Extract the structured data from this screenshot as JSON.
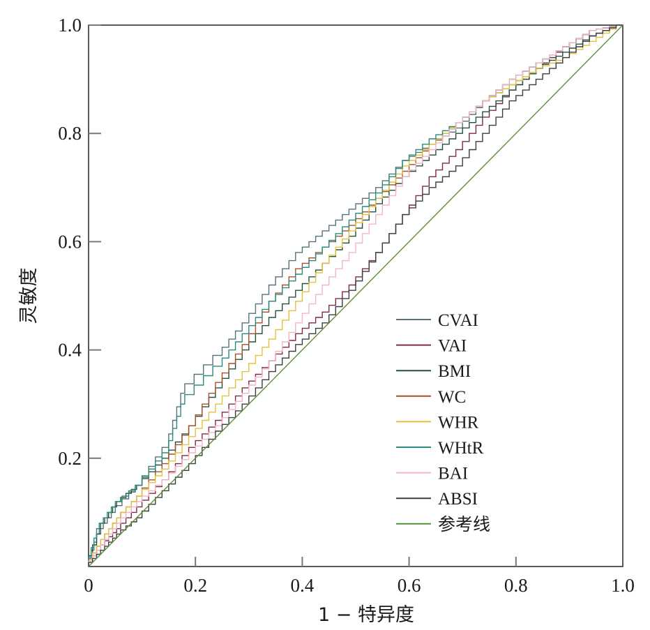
{
  "chart_data": {
    "type": "line",
    "xlabel": "1 − 特异度",
    "ylabel": "灵敏度",
    "xlim": [
      0,
      1
    ],
    "ylim": [
      0,
      1
    ],
    "x_ticks": [
      "0",
      "0.2",
      "0.4",
      "0.6",
      "0.8",
      "1.0"
    ],
    "y_ticks": [
      "0.2",
      "0.4",
      "0.6",
      "0.8",
      "1.0"
    ],
    "legend_position": "lower-right",
    "grid": false,
    "series": [
      {
        "name": "CVAI",
        "color": "#56727a",
        "x": [
          0,
          0.02,
          0.05,
          0.1,
          0.15,
          0.18,
          0.25,
          0.3,
          0.35,
          0.4,
          0.45,
          0.5,
          0.55,
          0.6,
          0.65,
          0.7,
          0.75,
          0.8,
          0.85,
          0.9,
          0.95,
          1.0
        ],
        "y": [
          0,
          0.06,
          0.1,
          0.15,
          0.22,
          0.32,
          0.39,
          0.45,
          0.52,
          0.58,
          0.62,
          0.66,
          0.7,
          0.75,
          0.78,
          0.81,
          0.86,
          0.89,
          0.92,
          0.96,
          0.99,
          1.0
        ]
      },
      {
        "name": "VAI",
        "color": "#7a2d43",
        "x": [
          0,
          0.03,
          0.06,
          0.1,
          0.15,
          0.2,
          0.25,
          0.3,
          0.35,
          0.4,
          0.45,
          0.5,
          0.55,
          0.6,
          0.65,
          0.7,
          0.75,
          0.8,
          0.85,
          0.9,
          0.95,
          1.0
        ],
        "y": [
          0,
          0.04,
          0.07,
          0.11,
          0.16,
          0.22,
          0.27,
          0.33,
          0.38,
          0.43,
          0.47,
          0.52,
          0.58,
          0.65,
          0.72,
          0.77,
          0.83,
          0.88,
          0.92,
          0.96,
          0.99,
          1.0
        ]
      },
      {
        "name": "BMI",
        "color": "#24503a",
        "x": [
          0,
          0.03,
          0.06,
          0.1,
          0.15,
          0.2,
          0.25,
          0.3,
          0.35,
          0.4,
          0.45,
          0.5,
          0.55,
          0.6,
          0.65,
          0.7,
          0.75,
          0.8,
          0.85,
          0.9,
          0.95,
          1.0
        ],
        "y": [
          0,
          0.08,
          0.12,
          0.15,
          0.2,
          0.26,
          0.33,
          0.4,
          0.46,
          0.51,
          0.56,
          0.61,
          0.67,
          0.72,
          0.76,
          0.8,
          0.84,
          0.88,
          0.92,
          0.95,
          0.98,
          1.0
        ]
      },
      {
        "name": "WC",
        "color": "#a4502b",
        "x": [
          0,
          0.03,
          0.06,
          0.1,
          0.15,
          0.2,
          0.25,
          0.3,
          0.35,
          0.4,
          0.45,
          0.5,
          0.55,
          0.6,
          0.65,
          0.7,
          0.75,
          0.8,
          0.85,
          0.9,
          0.95,
          1.0
        ],
        "y": [
          0,
          0.05,
          0.09,
          0.13,
          0.19,
          0.26,
          0.34,
          0.41,
          0.49,
          0.55,
          0.59,
          0.63,
          0.68,
          0.73,
          0.78,
          0.82,
          0.86,
          0.9,
          0.93,
          0.96,
          0.99,
          1.0
        ]
      },
      {
        "name": "WHR",
        "color": "#e2c23c",
        "x": [
          0,
          0.03,
          0.06,
          0.1,
          0.15,
          0.2,
          0.25,
          0.3,
          0.35,
          0.4,
          0.45,
          0.5,
          0.55,
          0.6,
          0.65,
          0.7,
          0.75,
          0.8,
          0.85,
          0.9,
          0.95,
          1.0
        ],
        "y": [
          0,
          0.05,
          0.09,
          0.13,
          0.18,
          0.24,
          0.3,
          0.36,
          0.42,
          0.49,
          0.56,
          0.62,
          0.68,
          0.74,
          0.78,
          0.82,
          0.86,
          0.89,
          0.92,
          0.94,
          0.97,
          1.0
        ]
      },
      {
        "name": "WHtR",
        "color": "#2a8a7e",
        "x": [
          0,
          0.02,
          0.05,
          0.1,
          0.15,
          0.18,
          0.25,
          0.3,
          0.35,
          0.4,
          0.45,
          0.5,
          0.55,
          0.6,
          0.65,
          0.7,
          0.75,
          0.8,
          0.85,
          0.9,
          0.95,
          1.0
        ],
        "y": [
          0,
          0.07,
          0.11,
          0.15,
          0.21,
          0.3,
          0.37,
          0.43,
          0.49,
          0.54,
          0.59,
          0.64,
          0.69,
          0.75,
          0.79,
          0.82,
          0.86,
          0.9,
          0.93,
          0.96,
          0.99,
          1.0
        ]
      },
      {
        "name": "BAI",
        "color": "#f2b5c4",
        "x": [
          0,
          0.03,
          0.06,
          0.1,
          0.15,
          0.2,
          0.25,
          0.3,
          0.35,
          0.4,
          0.45,
          0.5,
          0.55,
          0.6,
          0.65,
          0.7,
          0.75,
          0.8,
          0.85,
          0.9,
          0.95,
          1.0
        ],
        "y": [
          0,
          0.04,
          0.08,
          0.12,
          0.16,
          0.21,
          0.26,
          0.32,
          0.38,
          0.45,
          0.52,
          0.58,
          0.65,
          0.72,
          0.77,
          0.82,
          0.86,
          0.9,
          0.93,
          0.96,
          0.99,
          1.0
        ]
      },
      {
        "name": "ABSI",
        "color": "#3d3a45",
        "x": [
          0,
          0.03,
          0.06,
          0.1,
          0.15,
          0.2,
          0.25,
          0.3,
          0.35,
          0.4,
          0.45,
          0.5,
          0.55,
          0.6,
          0.65,
          0.7,
          0.75,
          0.8,
          0.85,
          0.9,
          0.95,
          1.0
        ],
        "y": [
          0,
          0.03,
          0.06,
          0.09,
          0.14,
          0.19,
          0.25,
          0.3,
          0.36,
          0.41,
          0.45,
          0.51,
          0.58,
          0.65,
          0.7,
          0.74,
          0.8,
          0.86,
          0.9,
          0.94,
          0.98,
          1.0
        ]
      },
      {
        "name": "参考线",
        "color": "#5a8f3c",
        "x": [
          0,
          1.0
        ],
        "y": [
          0,
          1.0
        ]
      }
    ]
  }
}
